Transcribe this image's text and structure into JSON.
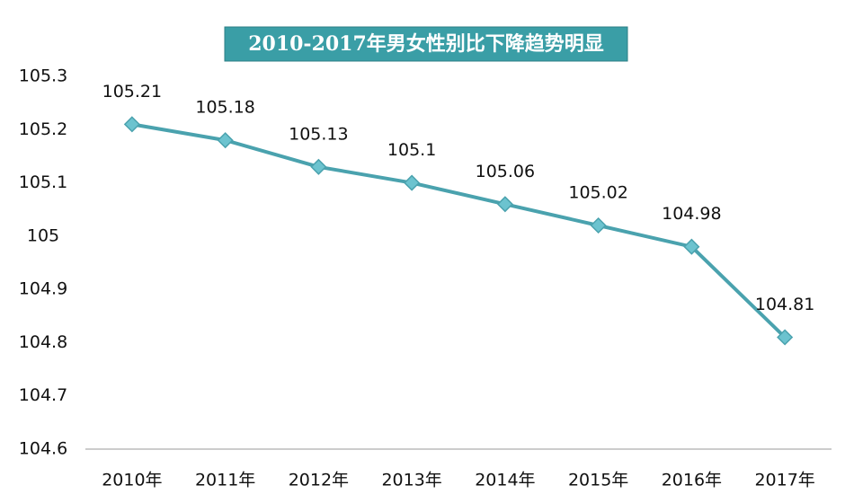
{
  "chart_data": {
    "type": "line",
    "title": "2010-2017年男女性别比下降趋势明显",
    "categories": [
      "2010年",
      "2011年",
      "2012年",
      "2013年",
      "2014年",
      "2015年",
      "2016年",
      "2017年"
    ],
    "values": [
      105.21,
      105.18,
      105.13,
      105.1,
      105.06,
      105.02,
      104.98,
      104.81
    ],
    "color": "#4aa2ae",
    "ylim": [
      104.6,
      105.3
    ],
    "yticks": [
      104.6,
      104.7,
      104.8,
      104.9,
      105,
      105.1,
      105.2,
      105.3
    ],
    "grid": false
  }
}
